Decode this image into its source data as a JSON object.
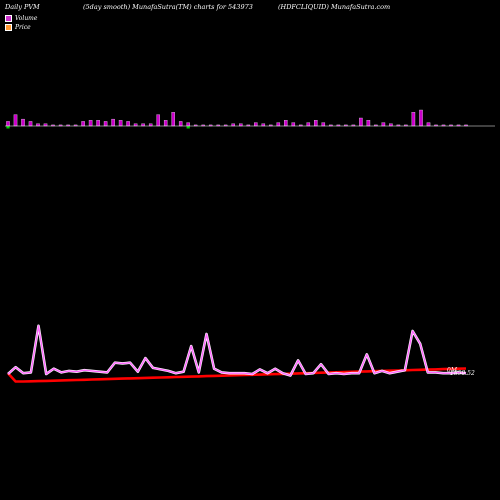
{
  "header": {
    "left": "Daily PVM",
    "middle": "(5day smooth) MunafaSutra(TM) charts for 543973",
    "right": "(HDFCLIQUID) MunafaSutra.com"
  },
  "legend": [
    {
      "label": "Volume",
      "color": "#cc33cc"
    },
    {
      "label": "Price",
      "color": "#ff9933"
    }
  ],
  "chart_data": {
    "type": "bar+line",
    "volume": {
      "color": "#cc00cc",
      "values": [
        4,
        10,
        6,
        4,
        2,
        2,
        1,
        1,
        1,
        1,
        4,
        5,
        5,
        4,
        6,
        5,
        4,
        2,
        2,
        2,
        10,
        5,
        12,
        4,
        3,
        1,
        1,
        1,
        1,
        1,
        2,
        2,
        1,
        3,
        2,
        1,
        3,
        5,
        3,
        1,
        3,
        5,
        3,
        1,
        1,
        1,
        1,
        7,
        5,
        1,
        3,
        2,
        1,
        1,
        12,
        14,
        3,
        1,
        1,
        1,
        1,
        1
      ],
      "negative_marks": [
        0,
        24
      ]
    },
    "price_smooth": {
      "color": "#ff66ff",
      "values": [
        1851,
        1860,
        1852,
        1853,
        1915,
        1851,
        1858,
        1853,
        1855,
        1854,
        1856,
        1855,
        1854,
        1853,
        1866,
        1865,
        1866,
        1854,
        1872,
        1859,
        1857,
        1855,
        1852,
        1854,
        1888,
        1853,
        1904,
        1858,
        1853,
        1852,
        1852,
        1852,
        1851,
        1857,
        1852,
        1858,
        1852,
        1849,
        1869,
        1851,
        1852,
        1864,
        1851,
        1852,
        1851,
        1852,
        1852,
        1877,
        1852,
        1855,
        1852,
        1854,
        1856,
        1908,
        1891,
        1853,
        1853,
        1852,
        1852,
        1853,
        1852
      ]
    },
    "price_trend": {
      "color": "#ff0000",
      "values": [
        1852,
        1841,
        1841,
        1841.2,
        1841.5,
        1841.8,
        1842.1,
        1842.4,
        1842.7,
        1843,
        1843.3,
        1843.6,
        1843.9,
        1844.2,
        1844.5,
        1844.8,
        1845.1,
        1845.4,
        1845.7,
        1846,
        1846.3,
        1846.6,
        1846.9,
        1847.2,
        1847.5,
        1847.8,
        1848.1,
        1848.4,
        1848.7,
        1849,
        1849.3,
        1849.6,
        1849.9,
        1850.2,
        1850.5,
        1850.8,
        1851.1,
        1851.4,
        1851.7,
        1852,
        1852.3,
        1852.6,
        1852.9,
        1853.2,
        1853.5,
        1853.8,
        1854.1,
        1854.4,
        1854.7,
        1855,
        1855.3,
        1855.6,
        1855.9,
        1856.2,
        1856.5,
        1856.8,
        1857.1,
        1857.4,
        1857.7,
        1858,
        1858.3
      ]
    },
    "last_label_top": "0M",
    "last_label_price": "1859.52"
  }
}
